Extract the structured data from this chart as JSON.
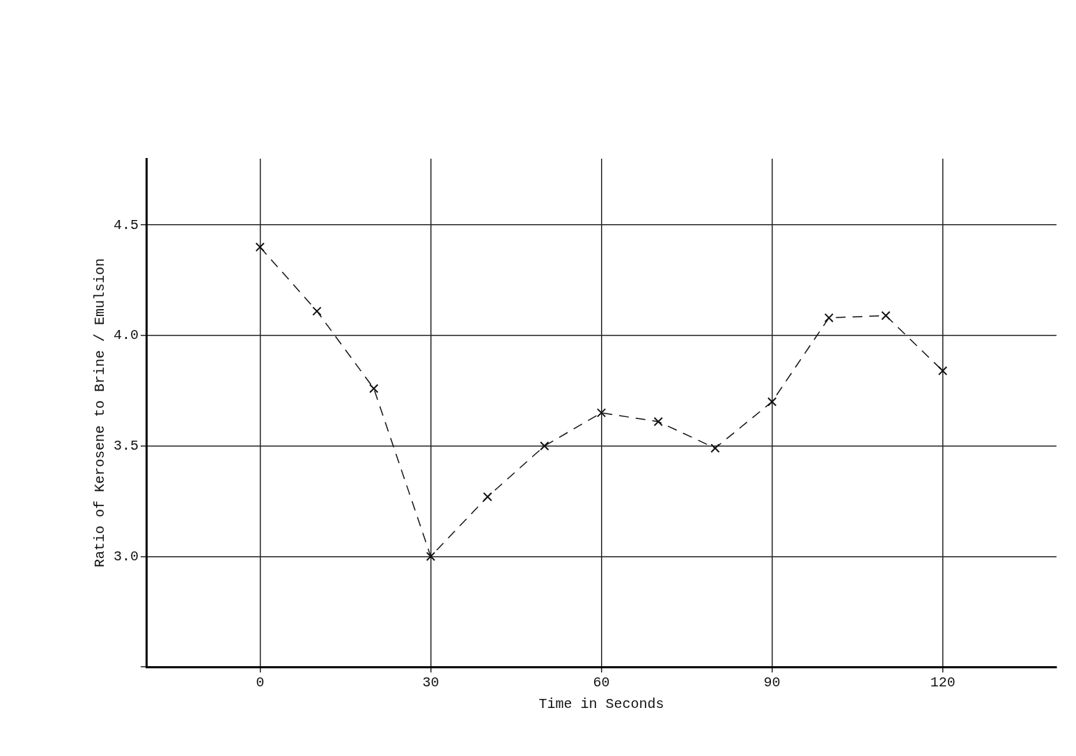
{
  "chart_data": {
    "type": "line",
    "xlabel": "Time in Seconds",
    "ylabel": "Ratio of Kerosene to Brine / Emulsion",
    "x": [
      0,
      10,
      20,
      30,
      40,
      50,
      60,
      70,
      80,
      90,
      100,
      110,
      120
    ],
    "series": [
      {
        "color": "#111111",
        "values": [
          4.4,
          4.11,
          3.76,
          3.0,
          3.27,
          3.5,
          3.65,
          3.61,
          3.49,
          3.7,
          4.08,
          4.09,
          3.84
        ]
      }
    ],
    "xlim": [
      -20,
      140
    ],
    "xticks": [
      0,
      30,
      60,
      90,
      120
    ],
    "ylim": [
      2.5,
      4.8
    ],
    "yticks": [
      {
        "value": 2.5,
        "label": null
      },
      {
        "value": 3,
        "label": "3.0"
      },
      3.5,
      {
        "value": 4,
        "label": "4.0"
      },
      4.5
    ],
    "grid": true,
    "legend": false,
    "marker": "cross",
    "line_style": "dashed"
  }
}
